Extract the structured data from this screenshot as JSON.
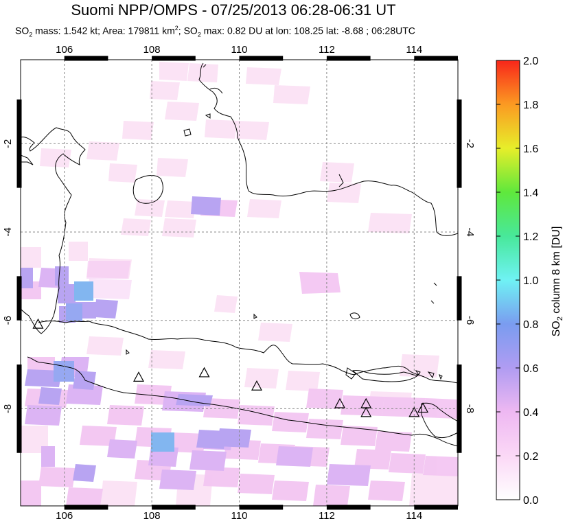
{
  "header": {
    "title": "Suomi NPP/OMPS - 07/25/2013 06:28-06:31 UT",
    "subtitle_parts": {
      "so2_label": "SO",
      "mass_text": " mass: 1.542 kt; Area: 179811 km",
      "max_label": "; SO",
      "max_text": " max: 0.82 DU at lon: 108.25 lat: -8.68 ; 06:28UTC",
      "sub2": "2",
      "sup2": "2"
    }
  },
  "map": {
    "lon_ticks": [
      "106",
      "108",
      "110",
      "112",
      "114"
    ],
    "lat_ticks": [
      "-2",
      "-4",
      "-6",
      "-8"
    ],
    "lon_values": [
      106,
      108,
      110,
      112,
      114
    ],
    "lat_values": [
      -2,
      -4,
      -6,
      -8
    ],
    "lon_range": [
      105,
      115
    ],
    "lat_range": [
      -10.2,
      -0.1
    ],
    "grid": "dashed",
    "volcano_markers": [
      {
        "lon": 105.4,
        "lat": -6.1
      },
      {
        "lon": 107.7,
        "lat": -7.3
      },
      {
        "lon": 109.2,
        "lat": -7.2
      },
      {
        "lon": 110.4,
        "lat": -7.5
      },
      {
        "lon": 112.3,
        "lat": -7.9
      },
      {
        "lon": 112.9,
        "lat": -7.9
      },
      {
        "lon": 112.9,
        "lat": -8.1
      },
      {
        "lon": 114.0,
        "lat": -8.1
      },
      {
        "lon": 114.2,
        "lat": -8.0
      }
    ]
  },
  "colorbar": {
    "label_main": "SO",
    "label_sub": "2",
    "label_rest": " column 8 km [DU]",
    "ticks": [
      "0.0",
      "0.2",
      "0.4",
      "0.6",
      "0.8",
      "1.0",
      "1.2",
      "1.4",
      "1.6",
      "1.8",
      "2.0"
    ],
    "range": [
      0,
      2
    ]
  }
}
